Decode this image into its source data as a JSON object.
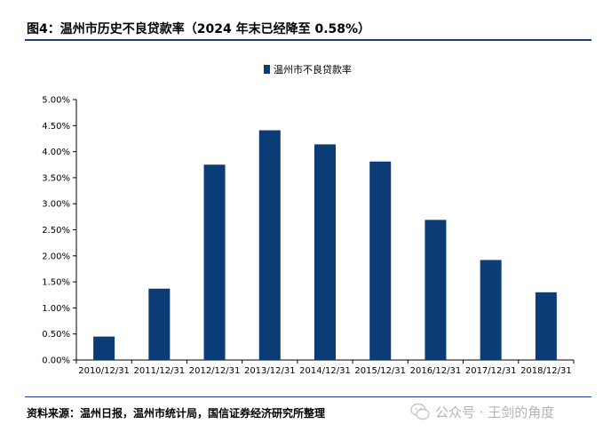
{
  "figure": {
    "title": "图4：温州市历史不良贷款率（2024 年末已经降至 0.58%）",
    "source": "资料来源：温州日报，温州市统计局，国信证券经济研究所整理",
    "watermark": "公众号 · 王剑的角度"
  },
  "colors": {
    "bar": "#0c3c75",
    "rule": "#1f3a93"
  },
  "chart_data": {
    "type": "bar",
    "categories": [
      "2010/12/31",
      "2011/12/31",
      "2012/12/31",
      "2013/12/31",
      "2014/12/31",
      "2015/12/31",
      "2016/12/31",
      "2017/12/31",
      "2018/12/31"
    ],
    "series": [
      {
        "name": "温州市不良贷款率",
        "values": [
          0.45,
          1.37,
          3.75,
          4.41,
          4.14,
          3.81,
          2.69,
          1.92,
          1.3
        ]
      }
    ],
    "y_ticks": [
      "0.00%",
      "0.50%",
      "1.00%",
      "1.50%",
      "2.00%",
      "2.50%",
      "3.00%",
      "3.50%",
      "4.00%",
      "4.50%",
      "5.00%"
    ],
    "ylim": [
      0,
      5
    ],
    "legend_position": "top-center",
    "grid": false
  }
}
